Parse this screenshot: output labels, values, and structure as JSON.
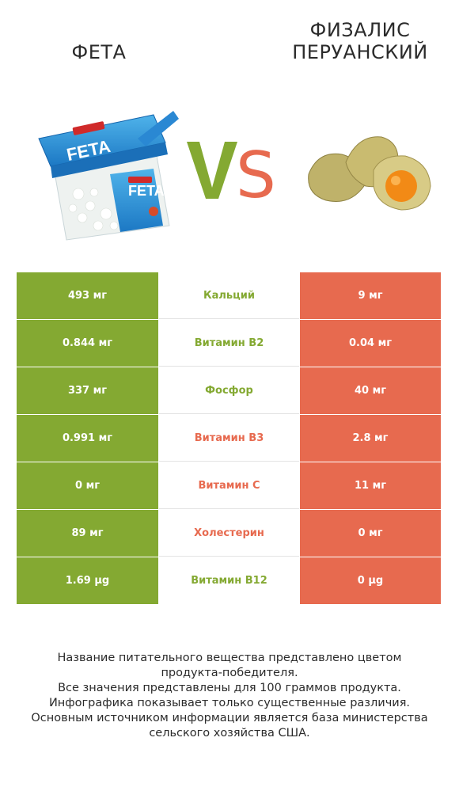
{
  "left_product": {
    "title": "ФЕТА"
  },
  "right_product": {
    "title_lines": [
      "ФИЗАЛИС",
      "ПЕРУАНСКИЙ"
    ]
  },
  "vs": {
    "text": "VS",
    "colors": {
      "v": "#84a932",
      "s": "#e76a4f"
    }
  },
  "colors": {
    "left_win": "#84a932",
    "right_win": "#e76a4f"
  },
  "rows": [
    {
      "left": "493 мг",
      "nutrient": "Кальций",
      "right": "9 мг",
      "winner": "left"
    },
    {
      "left": "0.844 мг",
      "nutrient": "Витамин B2",
      "right": "0.04 мг",
      "winner": "left"
    },
    {
      "left": "337 мг",
      "nutrient": "Фосфор",
      "right": "40 мг",
      "winner": "left"
    },
    {
      "left": "0.991 мг",
      "nutrient": "Витамин B3",
      "right": "2.8 мг",
      "winner": "right"
    },
    {
      "left": "0 мг",
      "nutrient": "Витамин C",
      "right": "11 мг",
      "winner": "right"
    },
    {
      "left": "89 мг",
      "nutrient": "Холестерин",
      "right": "0 мг",
      "winner": "right"
    },
    {
      "left": "1.69 µg",
      "nutrient": "Витамин B12",
      "right": "0 µg",
      "winner": "left"
    }
  ],
  "footer_lines": [
    "Название питательного вещества представлено цветом",
    "продукта-победителя.",
    "Все значения представлены для 100 граммов продукта.",
    "Инфографика показывает только существенные различия.",
    "Основным источником информации является база министерства",
    "сельского хозяйства США."
  ]
}
